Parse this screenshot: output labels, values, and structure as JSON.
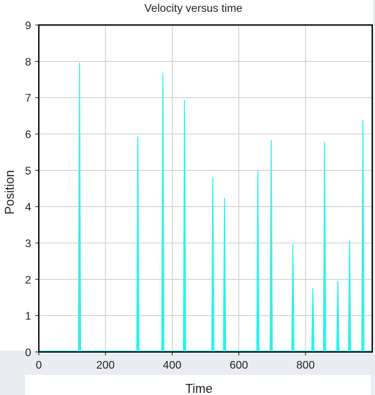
{
  "chart_data": {
    "type": "line",
    "title": "Velocity versus time",
    "xlabel": "Time",
    "ylabel": "Position",
    "xlim": [
      0,
      1000
    ],
    "ylim": [
      0,
      9
    ],
    "xticks": [
      "0",
      "200",
      "400",
      "600",
      "800"
    ],
    "yticks": [
      "0",
      "1",
      "2",
      "3",
      "4",
      "5",
      "6",
      "7",
      "8",
      "9"
    ],
    "grid": true,
    "legend": "none",
    "series": [
      {
        "color": "#2ef0ee",
        "spikes": [
          {
            "x": 122,
            "y": 7.95
          },
          {
            "x": 297,
            "y": 5.92
          },
          {
            "x": 372,
            "y": 7.68
          },
          {
            "x": 437,
            "y": 6.93
          },
          {
            "x": 522,
            "y": 4.8
          },
          {
            "x": 557,
            "y": 4.23
          },
          {
            "x": 657,
            "y": 4.97
          },
          {
            "x": 697,
            "y": 5.82
          },
          {
            "x": 762,
            "y": 2.97
          },
          {
            "x": 822,
            "y": 1.75
          },
          {
            "x": 857,
            "y": 5.77
          },
          {
            "x": 897,
            "y": 1.95
          },
          {
            "x": 932,
            "y": 3.05
          },
          {
            "x": 972,
            "y": 6.37
          }
        ],
        "baseline": 0
      }
    ]
  }
}
